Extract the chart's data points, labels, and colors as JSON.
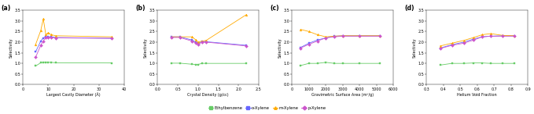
{
  "legend": [
    "Ethylbenzene",
    "o-Xylene",
    "m-Xylene",
    "p-Xylene"
  ],
  "colors": [
    "#66cc66",
    "#6666ff",
    "#ffaa00",
    "#cc55cc"
  ],
  "markers": [
    "s",
    "s",
    "^",
    "D"
  ],
  "panel_a": {
    "xlabel": "Largest Cavity Diameter (Å)",
    "ylabel": "Selectivity",
    "xlim": [
      0,
      40
    ],
    "ylim": [
      0.0,
      3.5
    ],
    "yticks": [
      0.0,
      0.5,
      1.0,
      1.5,
      2.0,
      2.5,
      3.0,
      3.5
    ],
    "xticks": [
      0,
      10,
      20,
      30,
      40
    ],
    "data": {
      "x": [
        5,
        7,
        8,
        9,
        10,
        11,
        13,
        35
      ],
      "EB": [
        0.88,
        1.03,
        1.05,
        1.05,
        1.05,
        1.05,
        1.03,
        1.02
      ],
      "oX": [
        1.55,
        2.05,
        2.2,
        2.25,
        2.25,
        2.25,
        2.22,
        2.18
      ],
      "mX": [
        1.9,
        2.55,
        3.1,
        2.35,
        2.45,
        2.35,
        2.3,
        2.25
      ],
      "pX": [
        1.3,
        1.85,
        2.05,
        2.22,
        2.22,
        2.22,
        2.2,
        2.18
      ]
    }
  },
  "panel_b": {
    "xlabel": "Crystal Density (g/cc)",
    "ylabel": "Selectivity",
    "xlim": [
      0.0,
      2.5
    ],
    "ylim": [
      0.0,
      3.5
    ],
    "yticks": [
      0.0,
      0.5,
      1.0,
      1.5,
      2.0,
      2.5,
      3.0,
      3.5
    ],
    "xticks": [
      0.0,
      0.5,
      1.0,
      1.5,
      2.0,
      2.5
    ],
    "data": {
      "x": [
        0.35,
        0.55,
        0.85,
        0.95,
        1.0,
        1.1,
        1.2,
        2.2
      ],
      "EB": [
        1.01,
        1.01,
        0.96,
        0.95,
        0.95,
        1.0,
        1.0,
        1.0
      ],
      "oX": [
        2.25,
        2.25,
        2.1,
        2.0,
        1.95,
        2.02,
        2.02,
        1.85
      ],
      "mX": [
        2.25,
        2.25,
        2.25,
        2.1,
        2.0,
        2.05,
        2.08,
        3.3
      ],
      "pX": [
        2.22,
        2.22,
        2.05,
        1.95,
        1.88,
        2.0,
        2.0,
        1.82
      ]
    }
  },
  "panel_c": {
    "xlabel": "Gravimetric Surface Area (m²/g)",
    "ylabel": "Selectivity",
    "xlim": [
      0,
      6000
    ],
    "ylim": [
      0.0,
      3.5
    ],
    "yticks": [
      0.0,
      0.5,
      1.0,
      1.5,
      2.0,
      2.5,
      3.0,
      3.5
    ],
    "xticks": [
      0,
      1000,
      2000,
      3000,
      4000,
      5000,
      6000
    ],
    "data": {
      "x": [
        500,
        1000,
        1500,
        2000,
        2500,
        3000,
        4000,
        5200
      ],
      "EB": [
        0.9,
        1.0,
        1.0,
        1.05,
        1.0,
        1.0,
        1.0,
        1.0
      ],
      "oX": [
        1.75,
        1.95,
        2.1,
        2.2,
        2.28,
        2.3,
        2.3,
        2.3
      ],
      "mX": [
        2.6,
        2.5,
        2.35,
        2.25,
        2.28,
        2.3,
        2.3,
        2.3
      ],
      "pX": [
        1.72,
        1.9,
        2.05,
        2.2,
        2.25,
        2.28,
        2.28,
        2.28
      ]
    }
  },
  "panel_d": {
    "xlabel": "Helium Void Fraction",
    "ylabel": "Selectivity",
    "xlim": [
      0.3,
      0.9
    ],
    "ylim": [
      0.0,
      3.5
    ],
    "yticks": [
      0.0,
      0.5,
      1.0,
      1.5,
      2.0,
      2.5,
      3.0,
      3.5
    ],
    "xticks": [
      0.3,
      0.4,
      0.5,
      0.6,
      0.7,
      0.8,
      0.9
    ],
    "data": {
      "x": [
        0.38,
        0.45,
        0.52,
        0.58,
        0.63,
        0.68,
        0.75,
        0.82
      ],
      "EB": [
        0.92,
        1.0,
        1.0,
        1.02,
        1.02,
        1.0,
        1.0,
        1.0
      ],
      "oX": [
        1.72,
        1.88,
        2.0,
        2.15,
        2.25,
        2.28,
        2.3,
        2.3
      ],
      "mX": [
        1.82,
        1.95,
        2.08,
        2.22,
        2.35,
        2.4,
        2.32,
        2.3
      ],
      "pX": [
        1.7,
        1.85,
        1.95,
        2.1,
        2.25,
        2.28,
        2.28,
        2.28
      ]
    }
  }
}
